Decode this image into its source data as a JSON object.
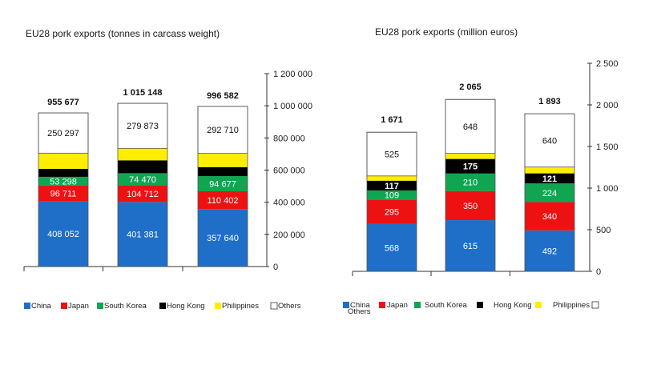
{
  "colors": {
    "China": "#1f6fc8",
    "Japan": "#ee1111",
    "South Korea": "#11a552",
    "Hong Kong": "#000000",
    "Philippines": "#ffee00",
    "Others": "#ffffff"
  },
  "chart_data": [
    {
      "type": "bar",
      "stacked": true,
      "title": "EU28 pork exports (tonnes in carcass weight)",
      "categories": [
        "",
        "",
        ""
      ],
      "series": [
        {
          "name": "China",
          "values": [
            408052,
            401381,
            357640
          ],
          "labels": [
            "408 052",
            "401 381",
            "357 640"
          ]
        },
        {
          "name": "Japan",
          "values": [
            96711,
            104712,
            110402
          ],
          "labels": [
            "96 711",
            "104 712",
            "110 402"
          ]
        },
        {
          "name": "South Korea",
          "values": [
            53298,
            74470,
            94677
          ],
          "labels": [
            "53 298",
            "74 470",
            "94 677"
          ]
        },
        {
          "name": "Hong Kong",
          "values": [
            50000,
            80000,
            56000
          ],
          "labels": [
            "",
            "",
            ""
          ]
        },
        {
          "name": "Philippines",
          "values": [
            97319,
            74713,
            85153
          ],
          "labels": [
            "",
            "",
            ""
          ]
        },
        {
          "name": "Others",
          "values": [
            250297,
            279873,
            292710
          ],
          "labels": [
            "250 297",
            "279 873",
            "292 710"
          ]
        }
      ],
      "totals": [
        "955 677",
        "1 015 148",
        "996 582"
      ],
      "total_values": [
        955677,
        1015148,
        996582
      ],
      "ylim": [
        0,
        1200000
      ],
      "yticks": [
        0,
        200000,
        400000,
        600000,
        800000,
        1000000,
        1200000
      ],
      "ytick_labels": [
        "0",
        "200 000",
        "400 000",
        "600 000",
        "800 000",
        "1 000 000",
        "1 200 000"
      ],
      "legend": [
        "China",
        "Japan",
        "South Korea",
        "Hong Kong",
        "Philippines",
        "Others"
      ],
      "grid": false,
      "legend_position": "bottom"
    },
    {
      "type": "bar",
      "stacked": true,
      "title": "EU28 pork exports (million euros)",
      "categories": [
        "",
        "",
        ""
      ],
      "series": [
        {
          "name": "China",
          "values": [
            568,
            615,
            492
          ],
          "labels": [
            "568",
            "615",
            "492"
          ]
        },
        {
          "name": "Japan",
          "values": [
            295,
            350,
            340
          ],
          "labels": [
            "295",
            "350",
            "340"
          ]
        },
        {
          "name": "South Korea",
          "values": [
            109,
            210,
            224
          ],
          "labels": [
            "109",
            "210",
            "224"
          ]
        },
        {
          "name": "Hong Kong",
          "values": [
            117,
            175,
            121
          ],
          "labels": [
            "117",
            "175",
            "121"
          ]
        },
        {
          "name": "Philippines",
          "values": [
            57,
            67,
            76
          ],
          "labels": [
            "",
            "",
            ""
          ]
        },
        {
          "name": "Others",
          "values": [
            525,
            648,
            640
          ],
          "labels": [
            "525",
            "648",
            "640"
          ]
        }
      ],
      "totals": [
        "1 671",
        "2 065",
        "1 893"
      ],
      "total_values": [
        1671,
        2065,
        1893
      ],
      "ylim": [
        0,
        2500
      ],
      "yticks": [
        0,
        500,
        1000,
        1500,
        2000,
        2500
      ],
      "ytick_labels": [
        "0",
        "500",
        "1 000",
        "1 500",
        "2 000",
        "2 500"
      ],
      "legend": [
        "China",
        "Japan",
        "South Korea",
        "Hong Kong",
        "Philippines",
        "Others"
      ],
      "grid": false,
      "legend_position": "bottom"
    }
  ]
}
